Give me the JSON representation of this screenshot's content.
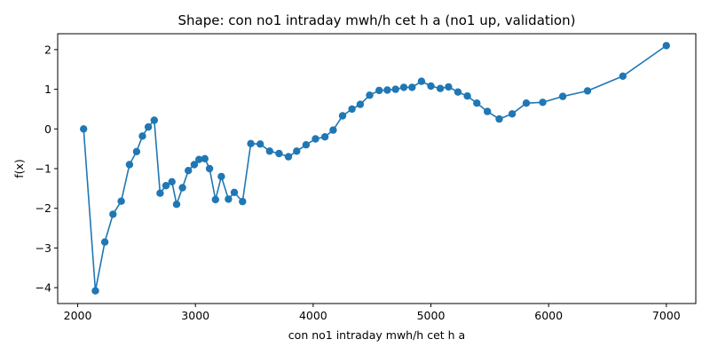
{
  "chart_data": {
    "type": "line",
    "title": "Shape: con no1 intraday mwh/h cet h a (no1 up, validation)",
    "xlabel": "con no1 intraday mwh/h cet h a",
    "ylabel": "f(x)",
    "xlim": [
      1830,
      7250
    ],
    "ylim": [
      -4.4,
      2.4
    ],
    "xticks": [
      2000,
      3000,
      4000,
      5000,
      6000,
      7000
    ],
    "yticks": [
      -4,
      -3,
      -2,
      -1,
      0,
      1,
      2
    ],
    "xtick_labels": [
      "2000",
      "3000",
      "4000",
      "5000",
      "6000",
      "7000"
    ],
    "ytick_labels": [
      "−4",
      "−3",
      "−2",
      "−1",
      "0",
      "1",
      "2"
    ],
    "grid": false,
    "color": "#1f77b4",
    "series": [
      {
        "x": [
          2050,
          2150,
          2230,
          2300,
          2370,
          2440,
          2500,
          2550,
          2600,
          2650,
          2700,
          2750,
          2800,
          2840,
          2890,
          2940,
          2990,
          3030,
          3080,
          3120,
          3170,
          3220,
          3280,
          3330,
          3400,
          3470,
          3550,
          3630,
          3710,
          3790,
          3860,
          3940,
          4020,
          4100,
          4170,
          4250,
          4330,
          4400,
          4480,
          4560,
          4630,
          4700,
          4770,
          4840,
          4920,
          5000,
          5080,
          5150,
          5230,
          5310,
          5390,
          5480,
          5580,
          5690,
          5810,
          5950,
          6120,
          6330,
          6630,
          7000
        ],
        "y": [
          0.0,
          -4.08,
          -2.85,
          -2.15,
          -1.82,
          -0.9,
          -0.57,
          -0.18,
          0.05,
          0.22,
          -1.62,
          -1.43,
          -1.33,
          -1.9,
          -1.48,
          -1.05,
          -0.9,
          -0.77,
          -0.75,
          -1.0,
          -1.78,
          -1.2,
          -1.77,
          -1.6,
          -1.83,
          -0.37,
          -0.38,
          -0.56,
          -0.62,
          -0.7,
          -0.56,
          -0.4,
          -0.25,
          -0.2,
          -0.03,
          0.33,
          0.5,
          0.62,
          0.85,
          0.97,
          0.98,
          1.0,
          1.05,
          1.05,
          1.2,
          1.08,
          1.02,
          1.06,
          0.93,
          0.83,
          0.65,
          0.44,
          0.25,
          0.38,
          0.65,
          0.67,
          0.82,
          0.96,
          1.33,
          2.1
        ]
      }
    ]
  }
}
